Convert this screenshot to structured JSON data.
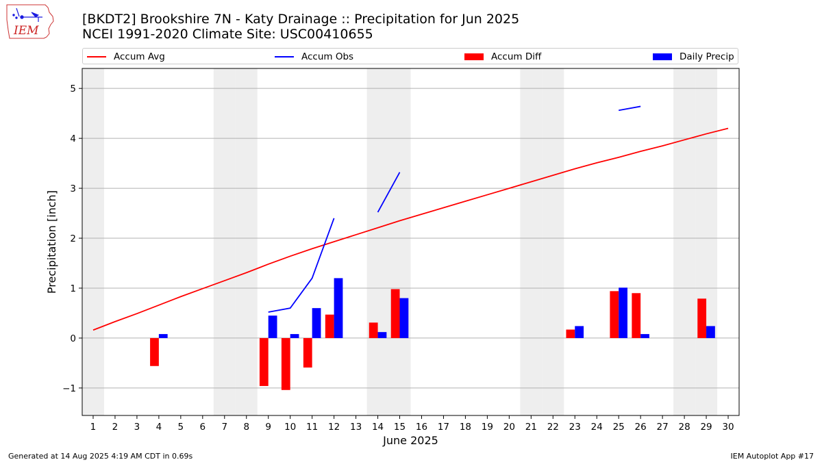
{
  "header": {
    "line1": "[BKDT2] Brookshire 7N - Katy Drainage :: Precipitation for Jun 2025",
    "line2": "NCEI 1991-2020 Climate Site: USC00410655"
  },
  "logo": {
    "text": "IEM"
  },
  "footer": {
    "left": "Generated at 14 Aug 2025 4:19 AM CDT in 0.69s",
    "right": "IEM Autoplot App #17"
  },
  "colors": {
    "avg": "#ff0000",
    "obs": "#0000ff",
    "diff": "#ff0000",
    "precip": "#0000ff",
    "shade": "#eeeeee",
    "grid": "#b0b0b0"
  },
  "chart_data": {
    "type": "bar",
    "xlabel": "June 2025",
    "ylabel": "Precipitation [inch]",
    "xlim": [
      0.5,
      30.5
    ],
    "ylim": [
      -1.55,
      5.4
    ],
    "yticks": [
      -1,
      0,
      1,
      2,
      3,
      4,
      5
    ],
    "yticklabels": [
      "−1",
      "0",
      "1",
      "2",
      "3",
      "4",
      "5"
    ],
    "x": [
      1,
      2,
      3,
      4,
      5,
      6,
      7,
      8,
      9,
      10,
      11,
      12,
      13,
      14,
      15,
      16,
      17,
      18,
      19,
      20,
      21,
      22,
      23,
      24,
      25,
      26,
      27,
      28,
      29,
      30
    ],
    "grid": true,
    "legend_placement": "top",
    "weekend_days": [
      1,
      7,
      8,
      14,
      15,
      21,
      22,
      28,
      29
    ],
    "series": [
      {
        "name": "Accum Avg",
        "kind": "line",
        "values": [
          0.16,
          0.33,
          0.49,
          0.66,
          0.83,
          0.99,
          1.15,
          1.31,
          1.48,
          1.64,
          1.79,
          1.93,
          2.07,
          2.21,
          2.35,
          2.48,
          2.61,
          2.74,
          2.87,
          3.0,
          3.13,
          3.26,
          3.39,
          3.51,
          3.62,
          3.74,
          3.85,
          3.97,
          4.09,
          4.2
        ]
      },
      {
        "name": "Accum Obs",
        "kind": "line",
        "values": [
          null,
          null,
          null,
          null,
          null,
          null,
          null,
          null,
          0.52,
          0.6,
          1.2,
          2.4,
          null,
          2.52,
          3.32,
          null,
          null,
          null,
          null,
          null,
          null,
          null,
          null,
          null,
          4.56,
          4.64,
          null,
          null,
          null,
          null
        ]
      },
      {
        "name": "Accum Diff",
        "kind": "bar",
        "values": [
          0,
          0,
          0,
          -0.56,
          0,
          0,
          0,
          0,
          -0.96,
          -1.04,
          -0.59,
          0.47,
          0,
          0.31,
          0.98,
          0,
          0,
          0,
          0,
          0,
          0,
          0,
          0.17,
          0,
          0.94,
          0.9,
          0,
          0,
          0.79,
          0
        ]
      },
      {
        "name": "Daily Precip",
        "kind": "bar",
        "values": [
          0,
          0,
          0,
          0.08,
          0,
          0,
          0,
          0,
          0.45,
          0.08,
          0.6,
          1.2,
          0,
          0.12,
          0.8,
          0,
          0,
          0,
          0,
          0,
          0,
          0,
          0.24,
          0,
          1.01,
          0.08,
          0,
          0,
          0.24,
          0
        ]
      }
    ]
  }
}
